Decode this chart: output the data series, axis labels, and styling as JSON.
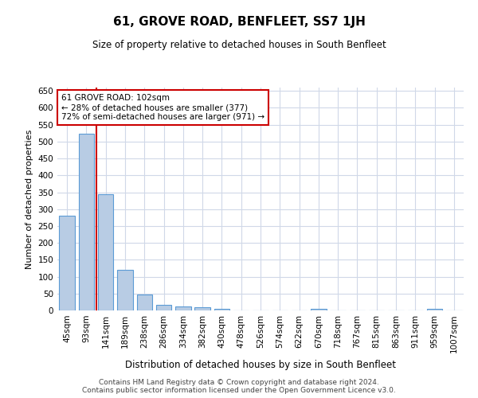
{
  "title": "61, GROVE ROAD, BENFLEET, SS7 1JH",
  "subtitle": "Size of property relative to detached houses in South Benfleet",
  "xlabel": "Distribution of detached houses by size in South Benfleet",
  "ylabel": "Number of detached properties",
  "categories": [
    "45sqm",
    "93sqm",
    "141sqm",
    "189sqm",
    "238sqm",
    "286sqm",
    "334sqm",
    "382sqm",
    "430sqm",
    "478sqm",
    "526sqm",
    "574sqm",
    "622sqm",
    "670sqm",
    "718sqm",
    "767sqm",
    "815sqm",
    "863sqm",
    "911sqm",
    "959sqm",
    "1007sqm"
  ],
  "values": [
    281,
    524,
    345,
    120,
    47,
    16,
    11,
    9,
    5,
    0,
    0,
    0,
    0,
    5,
    0,
    0,
    0,
    0,
    0,
    5,
    0
  ],
  "bar_color": "#b8cce4",
  "bar_edge_color": "#5b9bd5",
  "highlight_line_index": 1,
  "highlight_line_color": "#cc0000",
  "annotation_text": "61 GROVE ROAD: 102sqm\n← 28% of detached houses are smaller (377)\n72% of semi-detached houses are larger (971) →",
  "annotation_box_color": "#ffffff",
  "annotation_box_edge": "#cc0000",
  "ylim": [
    0,
    660
  ],
  "yticks": [
    0,
    50,
    100,
    150,
    200,
    250,
    300,
    350,
    400,
    450,
    500,
    550,
    600,
    650
  ],
  "footer_line1": "Contains HM Land Registry data © Crown copyright and database right 2024.",
  "footer_line2": "Contains public sector information licensed under the Open Government Licence v3.0.",
  "background_color": "#ffffff",
  "grid_color": "#d0d8e8",
  "title_fontsize": 11,
  "subtitle_fontsize": 8.5,
  "ylabel_fontsize": 8,
  "xlabel_fontsize": 8.5,
  "tick_fontsize": 7.5,
  "footer_fontsize": 6.5
}
